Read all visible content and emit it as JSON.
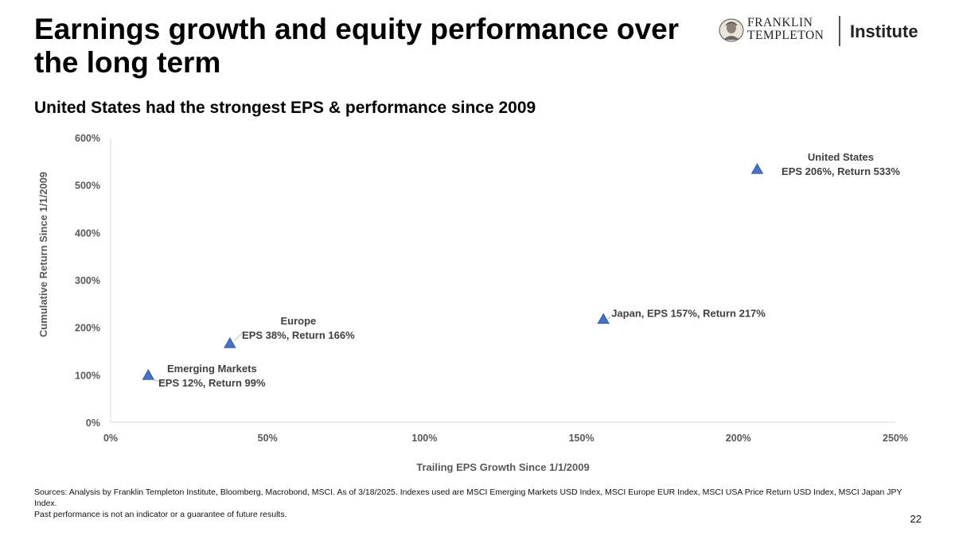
{
  "page": {
    "title": "Earnings growth and equity performance over the long term",
    "subtitle": "United States had the strongest EPS & performance since 2009",
    "footnote_line1": "Sources: Analysis by Franklin Templeton Institute, Bloomberg, Macrobond, MSCI. As of 3/18/2025. Indexes used are MSCI Emerging Markets USD Index, MSCI Europe EUR Index, MSCI USA Price Return USD Index, MSCI Japan JPY Index.",
    "footnote_line2": "Past performance is not an indicator or a guarantee of future results.",
    "page_number": "22"
  },
  "logo": {
    "brand_line1": "FRANKLIN",
    "brand_line2": "TEMPLETON",
    "institute": "Institute"
  },
  "colors": {
    "marker_fill": "#4472c4",
    "marker_stroke": "#2f4f9a",
    "axis_text": "#595959",
    "axis_line": "#d9d9d9",
    "label_text": "#404040"
  },
  "chart_data": {
    "type": "scatter",
    "xlabel": "Trailing EPS Growth Since 1/1/2009",
    "ylabel": "Cumulative Return Since 1/1/2009",
    "xlim": [
      0,
      250
    ],
    "ylim": [
      0,
      600
    ],
    "x_ticks": [
      0,
      50,
      100,
      150,
      200,
      250
    ],
    "y_ticks": [
      0,
      100,
      200,
      300,
      400,
      500,
      600
    ],
    "x_tick_labels": [
      "0%",
      "50%",
      "100%",
      "150%",
      "200%",
      "250%"
    ],
    "y_tick_labels": [
      "0%",
      "100%",
      "200%",
      "300%",
      "400%",
      "500%",
      "600%"
    ],
    "grid": false,
    "marker": "triangle",
    "points": [
      {
        "name": "Emerging Markets",
        "x": 12,
        "y": 99,
        "label_lines": [
          "Emerging Markets",
          "EPS 12%, Return 99%"
        ]
      },
      {
        "name": "Europe",
        "x": 38,
        "y": 166,
        "label_lines": [
          "Europe",
          "EPS 38%, Return 166%"
        ]
      },
      {
        "name": "Japan",
        "x": 157,
        "y": 217,
        "label_lines": [
          "Japan, EPS 157%, Return 217%"
        ]
      },
      {
        "name": "United States",
        "x": 206,
        "y": 533,
        "label_lines": [
          "United States",
          "EPS 206%, Return 533%"
        ]
      }
    ]
  }
}
